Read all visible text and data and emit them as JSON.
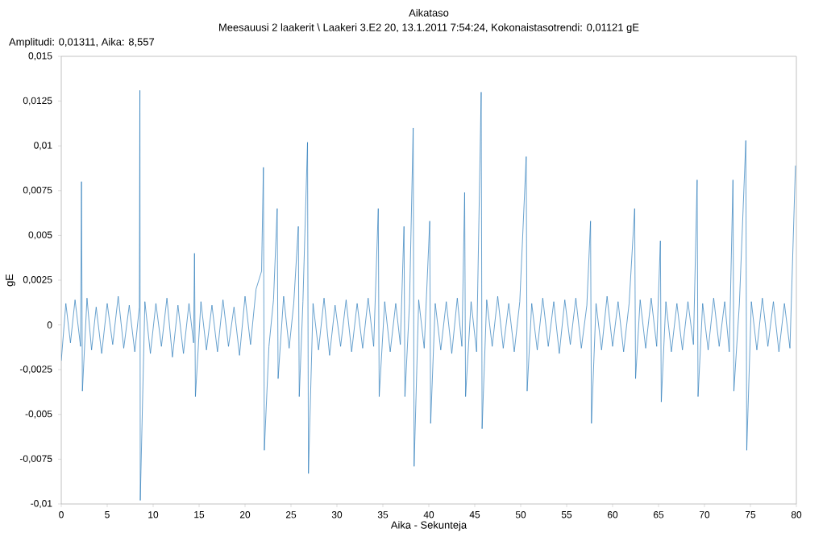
{
  "chart_data": {
    "type": "line",
    "title": "Aikataso",
    "subtitle": "Meesauusi 2 laakerit \\ Laakeri 3.E2 20,  13.1.2011 7:54:24, Kokonaistasotrendi: 0,01121 gE",
    "annotations": [
      "Amplitudi: 0,01311,  Aika: 8,557"
    ],
    "xlabel": "Aika - Sekunteja",
    "ylabel": "gE",
    "xlim": [
      0,
      80
    ],
    "ylim": [
      -0.01,
      0.015
    ],
    "xticks": [
      0,
      5,
      10,
      15,
      20,
      25,
      30,
      35,
      40,
      45,
      50,
      55,
      60,
      65,
      70,
      75,
      80
    ],
    "yticks": [
      {
        "value": -0.01,
        "label": "-0,01"
      },
      {
        "value": -0.0075,
        "label": "-0,0075"
      },
      {
        "value": -0.005,
        "label": "-0,005"
      },
      {
        "value": -0.0025,
        "label": "-0,0025"
      },
      0,
      {
        "value": 0.0025,
        "label": "0,0025"
      },
      {
        "value": 0.005,
        "label": "0,005"
      },
      {
        "value": 0.0075,
        "label": "0,0075"
      },
      {
        "value": 0.01,
        "label": "0,01"
      },
      {
        "value": 0.0125,
        "label": "0,0125"
      },
      {
        "value": 0.015,
        "label": "0,015"
      }
    ],
    "marker": "none",
    "line_style": "solid",
    "series": [
      {
        "color": "#2b7bba",
        "x": [
          0,
          0.5,
          1.0,
          1.5,
          2.1,
          2.2,
          2.3,
          2.8,
          3.3,
          3.8,
          4.4,
          5.0,
          5.6,
          6.2,
          6.8,
          7.4,
          8.0,
          8.5,
          8.557,
          8.6,
          9.1,
          9.7,
          10.3,
          10.9,
          11.5,
          12.1,
          12.7,
          13.3,
          13.9,
          14.4,
          14.5,
          14.6,
          15.2,
          15.8,
          16.4,
          17.0,
          17.6,
          18.2,
          18.8,
          19.4,
          20.0,
          20.6,
          21.2,
          21.8,
          22.0,
          22.1,
          22.6,
          23.1,
          23.5,
          23.6,
          24.2,
          24.8,
          25.3,
          25.8,
          25.9,
          26.3,
          26.8,
          26.9,
          27.4,
          28.0,
          28.6,
          29.2,
          29.8,
          30.4,
          31.0,
          31.6,
          32.2,
          32.8,
          33.4,
          34.0,
          34.5,
          34.6,
          35.2,
          35.8,
          36.4,
          36.9,
          37.3,
          37.4,
          37.9,
          38.3,
          38.4,
          38.9,
          39.5,
          40.1,
          40.2,
          40.7,
          41.3,
          41.9,
          42.5,
          43.1,
          43.6,
          43.9,
          44.0,
          44.6,
          45.2,
          45.7,
          45.8,
          46.3,
          46.9,
          47.5,
          48.1,
          48.7,
          49.3,
          49.9,
          50.6,
          50.7,
          51.2,
          51.8,
          52.4,
          53.0,
          53.6,
          54.2,
          54.8,
          55.4,
          56.0,
          56.6,
          57.2,
          57.6,
          57.7,
          58.2,
          58.8,
          59.4,
          60.0,
          60.6,
          61.2,
          61.8,
          62.4,
          62.5,
          63.0,
          63.6,
          64.2,
          64.8,
          65.2,
          65.3,
          65.8,
          66.4,
          67.0,
          67.6,
          68.2,
          68.8,
          69.2,
          69.3,
          69.8,
          70.4,
          71.0,
          71.6,
          72.2,
          72.7,
          73.1,
          73.2,
          73.8,
          74.5,
          74.6,
          75.1,
          75.7,
          76.3,
          76.9,
          77.5,
          78.1,
          78.7,
          79.3,
          79.9
        ],
        "values": [
          -0.002,
          0.0012,
          -0.001,
          0.0014,
          -0.0012,
          0.008,
          -0.0037,
          0.0015,
          -0.0014,
          0.001,
          -0.0016,
          0.0012,
          -0.0011,
          0.0016,
          -0.0013,
          0.0011,
          -0.0015,
          0.001,
          0.0131,
          -0.0098,
          0.0013,
          -0.0016,
          0.0012,
          -0.0012,
          0.0015,
          -0.0018,
          0.0011,
          -0.0016,
          0.0012,
          -0.001,
          0.004,
          -0.004,
          0.0013,
          -0.0014,
          0.0011,
          -0.0015,
          0.0014,
          -0.0012,
          0.001,
          -0.0017,
          0.0016,
          -0.0011,
          0.002,
          0.003,
          0.0088,
          -0.007,
          -0.0012,
          0.0014,
          0.0065,
          -0.003,
          0.0016,
          -0.0013,
          0.0012,
          0.0055,
          -0.004,
          0.0013,
          0.0102,
          -0.0083,
          0.0012,
          -0.0014,
          0.0015,
          -0.0017,
          0.0011,
          -0.0012,
          0.0014,
          -0.0015,
          0.0012,
          -0.0013,
          0.0015,
          -0.0012,
          0.0065,
          -0.004,
          0.0013,
          -0.0015,
          0.0012,
          -0.0011,
          0.0055,
          -0.004,
          0.0012,
          0.011,
          -0.0079,
          0.0014,
          -0.0013,
          0.0058,
          -0.0055,
          0.0012,
          -0.0014,
          0.0013,
          -0.0016,
          0.0015,
          -0.0012,
          0.0074,
          -0.004,
          0.0013,
          -0.0015,
          0.013,
          -0.0058,
          0.0014,
          -0.0012,
          0.0016,
          -0.0013,
          0.0012,
          -0.0015,
          0.0013,
          0.0094,
          -0.0037,
          0.0012,
          -0.0014,
          0.0015,
          -0.0012,
          0.0013,
          -0.0016,
          0.0014,
          -0.0011,
          0.0015,
          -0.0013,
          0.0011,
          0.0058,
          -0.0055,
          0.0012,
          -0.0014,
          0.0016,
          -0.0012,
          0.0013,
          -0.0015,
          0.0012,
          0.0065,
          -0.003,
          0.0014,
          -0.0013,
          0.0015,
          -0.0012,
          0.0047,
          -0.0043,
          0.0013,
          -0.0015,
          0.0012,
          -0.0014,
          0.0013,
          -0.0011,
          0.0081,
          -0.004,
          0.0012,
          -0.0014,
          0.0015,
          -0.0012,
          0.0013,
          -0.0015,
          0.0081,
          -0.0037,
          0.0012,
          0.0103,
          -0.007,
          0.0013,
          -0.0014,
          0.0015,
          -0.0012,
          0.0013,
          -0.0015,
          0.0012,
          -0.0013,
          0.0089
        ]
      }
    ]
  }
}
